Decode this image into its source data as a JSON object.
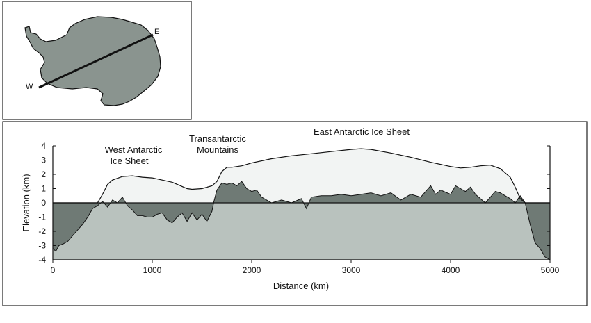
{
  "inset_map": {
    "label_west": "W",
    "label_east": "E",
    "colors": {
      "land": "#8a948f",
      "outline": "#111111",
      "transect": "#111111"
    }
  },
  "annotations": {
    "west": [
      "West Antarctic",
      "Ice Sheet"
    ],
    "trans": [
      "Transantarctic",
      "Mountains"
    ],
    "east": "East Antarctic Ice Sheet"
  },
  "chart_data": {
    "type": "area",
    "xlabel": "Distance (km)",
    "ylabel": "Elevation (km)",
    "xlim": [
      0,
      5000
    ],
    "ylim": [
      -4,
      4
    ],
    "xticks": [
      0,
      1000,
      2000,
      3000,
      4000,
      5000
    ],
    "yticks": [
      -4,
      -3,
      -2,
      -1,
      0,
      1,
      2,
      3,
      4
    ],
    "grid": false,
    "reference_line": 0,
    "colors": {
      "ice": "#f2f4f3",
      "bedrock": "#b9c2be",
      "ocean": "#6f7a75",
      "line": "#111111"
    },
    "series": [
      {
        "key": "ice_surface",
        "x": [
          0,
          450,
          500,
          550,
          600,
          700,
          800,
          900,
          1000,
          1100,
          1200,
          1300,
          1350,
          1400,
          1500,
          1600,
          1650,
          1700,
          1750,
          1800,
          1900,
          2000,
          2200,
          2400,
          2600,
          2800,
          3000,
          3100,
          3200,
          3400,
          3600,
          3800,
          4000,
          4100,
          4200,
          4300,
          4400,
          4500,
          4600,
          4650,
          4700,
          4750,
          5000
        ],
        "y": [
          0,
          0,
          0.6,
          1.3,
          1.6,
          1.85,
          1.9,
          1.8,
          1.75,
          1.6,
          1.45,
          1.15,
          1.0,
          0.95,
          1.0,
          1.2,
          1.5,
          2.2,
          2.5,
          2.5,
          2.6,
          2.8,
          3.1,
          3.3,
          3.45,
          3.6,
          3.75,
          3.8,
          3.75,
          3.5,
          3.2,
          2.85,
          2.55,
          2.45,
          2.5,
          2.6,
          2.65,
          2.4,
          1.8,
          1.1,
          0.3,
          0,
          0
        ]
      },
      {
        "key": "bedrock",
        "x": [
          0,
          30,
          60,
          100,
          150,
          200,
          250,
          300,
          350,
          400,
          450,
          500,
          550,
          600,
          650,
          700,
          750,
          800,
          850,
          900,
          950,
          1000,
          1050,
          1100,
          1150,
          1200,
          1250,
          1300,
          1350,
          1400,
          1450,
          1500,
          1550,
          1600,
          1620,
          1650,
          1700,
          1750,
          1800,
          1850,
          1900,
          1950,
          2000,
          2050,
          2100,
          2150,
          2200,
          2300,
          2400,
          2500,
          2550,
          2600,
          2700,
          2800,
          2900,
          3000,
          3100,
          3200,
          3300,
          3400,
          3500,
          3600,
          3700,
          3800,
          3850,
          3900,
          4000,
          4050,
          4100,
          4150,
          4200,
          4250,
          4300,
          4350,
          4400,
          4450,
          4500,
          4550,
          4600,
          4650,
          4700,
          4750,
          4800,
          4850,
          4900,
          4950,
          5000
        ],
        "y": [
          -3.2,
          -3.4,
          -3.0,
          -2.9,
          -2.7,
          -2.3,
          -1.9,
          -1.5,
          -1.0,
          -0.4,
          -0.2,
          0.1,
          -0.3,
          0.2,
          0.0,
          0.4,
          -0.2,
          -0.5,
          -0.9,
          -0.9,
          -1.0,
          -1.0,
          -0.8,
          -0.7,
          -1.2,
          -1.4,
          -1.0,
          -0.7,
          -1.3,
          -0.7,
          -1.2,
          -0.8,
          -1.3,
          -0.6,
          0.1,
          0.9,
          1.4,
          1.3,
          1.4,
          1.2,
          1.5,
          1.0,
          0.8,
          0.9,
          0.4,
          0.2,
          0.0,
          0.2,
          0.0,
          0.3,
          -0.4,
          0.4,
          0.5,
          0.5,
          0.6,
          0.5,
          0.6,
          0.7,
          0.5,
          0.7,
          0.2,
          0.6,
          0.4,
          1.2,
          0.6,
          0.9,
          0.6,
          1.2,
          1.0,
          0.8,
          1.1,
          0.6,
          0.3,
          0.0,
          0.4,
          0.8,
          0.7,
          0.5,
          0.3,
          0.0,
          0.5,
          0.0,
          -1.5,
          -2.8,
          -3.2,
          -3.8,
          -4.0
        ]
      }
    ]
  }
}
